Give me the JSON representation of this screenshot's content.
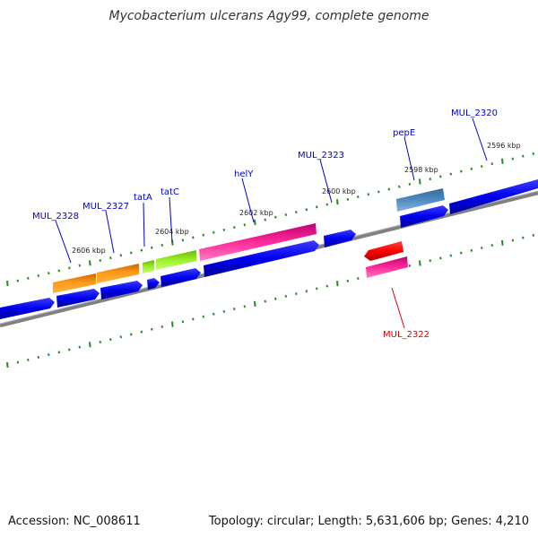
{
  "title": "Mycobacterium ulcerans Agy99, complete genome",
  "footer": {
    "accession": "Accession: NC_008611",
    "topology": "Topology: circular; Length: 5,631,606 bp; Genes: 4,210"
  },
  "scale_labels": [
    "2606 kbp",
    "2604 kbp",
    "2602 kbp",
    "2600 kbp",
    "2598 kbp",
    "2596 kbp"
  ],
  "gene_labels": [
    {
      "text": "MUL_2328",
      "color": "#0000cc"
    },
    {
      "text": "MUL_2327",
      "color": "#0000cc"
    },
    {
      "text": "tatA",
      "color": "#0000cc"
    },
    {
      "text": "tatC",
      "color": "#0000cc"
    },
    {
      "text": "helY",
      "color": "#0000cc"
    },
    {
      "text": "MUL_2323",
      "color": "#0000cc"
    },
    {
      "text": "pepE",
      "color": "#0000cc"
    },
    {
      "text": "MUL_2320",
      "color": "#0000cc"
    },
    {
      "text": "MUL_2322",
      "color": "#dd0000"
    }
  ],
  "colors": {
    "backbone": "#808080",
    "cds": "#0000ee",
    "orange": "#ff8c00",
    "green": "#99ee22",
    "pink": "#ff1493",
    "red": "#ff0000",
    "steelblue": "#4682b4",
    "ticks": "#228b22"
  }
}
